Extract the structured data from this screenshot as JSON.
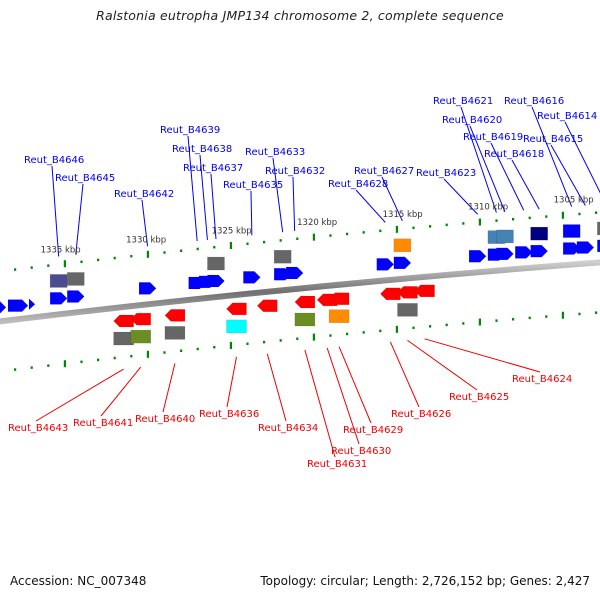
{
  "title": "Ralstonia eutropha JMP134 chromosome 2, complete sequence",
  "footer": {
    "accession": "Accession: NC_007348",
    "summary": "Topology: circular; Length: 2,726,152 bp; Genes: 2,427"
  },
  "colors": {
    "forward_label": "#0000ee",
    "reverse_label": "#ee0000",
    "backbone": "#777777",
    "tick": "#008800",
    "forward_gene": "#0000ff",
    "reverse_gene": "#ff0000"
  },
  "kbp_labels": [
    {
      "text": "1335 kbp",
      "kbp": 1335
    },
    {
      "text": "1330 kbp",
      "kbp": 1330
    },
    {
      "text": "1325 kbp",
      "kbp": 1325
    },
    {
      "text": "1320 kbp",
      "kbp": 1320
    },
    {
      "text": "1315 kbp",
      "kbp": 1315
    },
    {
      "text": "1310 kbp",
      "kbp": 1310
    },
    {
      "text": "1305 kbp",
      "kbp": 1305
    }
  ],
  "forward_genes": [
    {
      "label": "Reut_B4646",
      "kbp": 1335.0,
      "cog": "#4b4b8f"
    },
    {
      "label": "Reut_B4645",
      "kbp": 1334.0,
      "cog": "#666666"
    },
    {
      "label": "Reut_B4642",
      "kbp": 1329.8,
      "cog": ""
    },
    {
      "label": "Reut_B4639",
      "kbp": 1326.9,
      "cog": ""
    },
    {
      "label": "Reut_B4638",
      "kbp": 1326.3,
      "cog": ""
    },
    {
      "label": "Reut_B4637",
      "kbp": 1325.8,
      "cog": "#666666"
    },
    {
      "label": "Reut_B4635",
      "kbp": 1323.7,
      "cog": ""
    },
    {
      "label": "Reut_B4633",
      "kbp": 1321.9,
      "cog": "#666666"
    },
    {
      "label": "Reut_B4632",
      "kbp": 1321.2,
      "cog": ""
    },
    {
      "label": "Reut_B4628",
      "kbp": 1315.9,
      "cog": ""
    },
    {
      "label": "Reut_B4627",
      "kbp": 1314.9,
      "cog": "#ff8c00"
    },
    {
      "label": "Reut_B4623",
      "kbp": 1310.5,
      "cog": ""
    },
    {
      "label": "Reut_B4621",
      "kbp": 1309.4,
      "cog": "#4682b4"
    },
    {
      "label": "Reut_B4620",
      "kbp": 1308.9,
      "cog": "#4682b4"
    },
    {
      "label": "Reut_B4619",
      "kbp": 1307.8,
      "cog": ""
    },
    {
      "label": "Reut_B4618",
      "kbp": 1306.9,
      "cog": "#000080"
    },
    {
      "label": "Reut_B4616",
      "kbp": 1305.0,
      "cog": "#0000ff"
    },
    {
      "label": "Reut_B4615",
      "kbp": 1304.2,
      "cog": ""
    },
    {
      "label": "Reut_B4614",
      "kbp": 1303.0,
      "cog": "#666666"
    }
  ],
  "reverse_genes": [
    {
      "label": "Reut_B4643",
      "kbp": 1331.2,
      "cog": "#666666"
    },
    {
      "label": "Reut_B4641",
      "kbp": 1330.2,
      "cog": "#6b8e23"
    },
    {
      "label": "Reut_B4640",
      "kbp": 1328.2,
      "cog": "#666666"
    },
    {
      "label": "Reut_B4636",
      "kbp": 1324.6,
      "cog": "#00ffff"
    },
    {
      "label": "Reut_B4634",
      "kbp": 1322.8,
      "cog": ""
    },
    {
      "label": "Reut_B4631",
      "kbp": 1320.6,
      "cog": "#6b8e23"
    },
    {
      "label": "Reut_B4630",
      "kbp": 1319.3,
      "cog": ""
    },
    {
      "label": "Reut_B4629",
      "kbp": 1318.6,
      "cog": "#ff8c00"
    },
    {
      "label": "Reut_B4626",
      "kbp": 1315.6,
      "cog": ""
    },
    {
      "label": "Reut_B4625",
      "kbp": 1314.6,
      "cog": "#666666"
    },
    {
      "label": "Reut_B4624",
      "kbp": 1313.6,
      "cog": ""
    }
  ]
}
